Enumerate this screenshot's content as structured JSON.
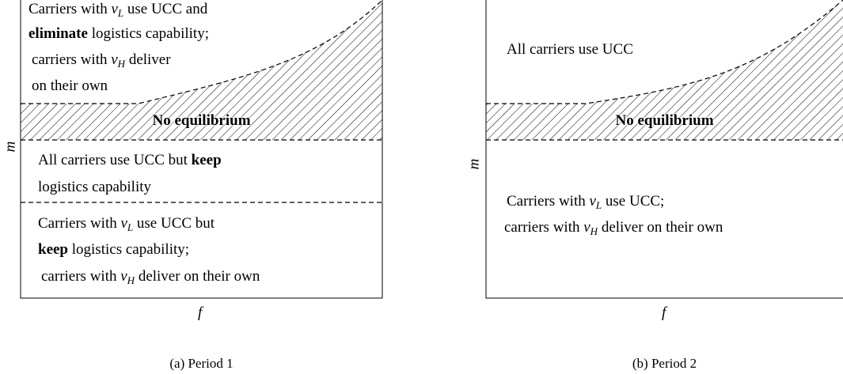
{
  "panels": [
    {
      "caption": "(a) Period 1",
      "x_label": "f",
      "y_label": "m",
      "band_label": "No equilibrium",
      "regions": [
        [
          [
            "Carriers with ",
            "v",
            "L",
            " use UCC and"
          ],
          [
            "eliminate",
            " logistics capability;"
          ],
          [
            "carriers with ",
            "v",
            "H",
            " deliver"
          ],
          [
            "on their own"
          ]
        ],
        [
          [
            "All carriers use UCC but ",
            "keep"
          ],
          [
            "logistics capability"
          ]
        ],
        [
          [
            "Carriers with ",
            "v",
            "L",
            " use UCC but"
          ],
          [
            "keep",
            " logistics capability;"
          ],
          [
            "carriers with ",
            "v",
            "H",
            " deliver on their own"
          ]
        ]
      ]
    },
    {
      "caption": "(b) Period 2",
      "x_label": "f",
      "y_label": "m",
      "band_label": "No equilibrium",
      "regions": [
        [
          [
            "All carriers use UCC"
          ]
        ],
        [
          [
            "Carriers with ",
            "v",
            "L",
            " use UCC;"
          ],
          [
            "carriers with ",
            "v",
            "H",
            " deliver on their own"
          ]
        ]
      ]
    }
  ]
}
